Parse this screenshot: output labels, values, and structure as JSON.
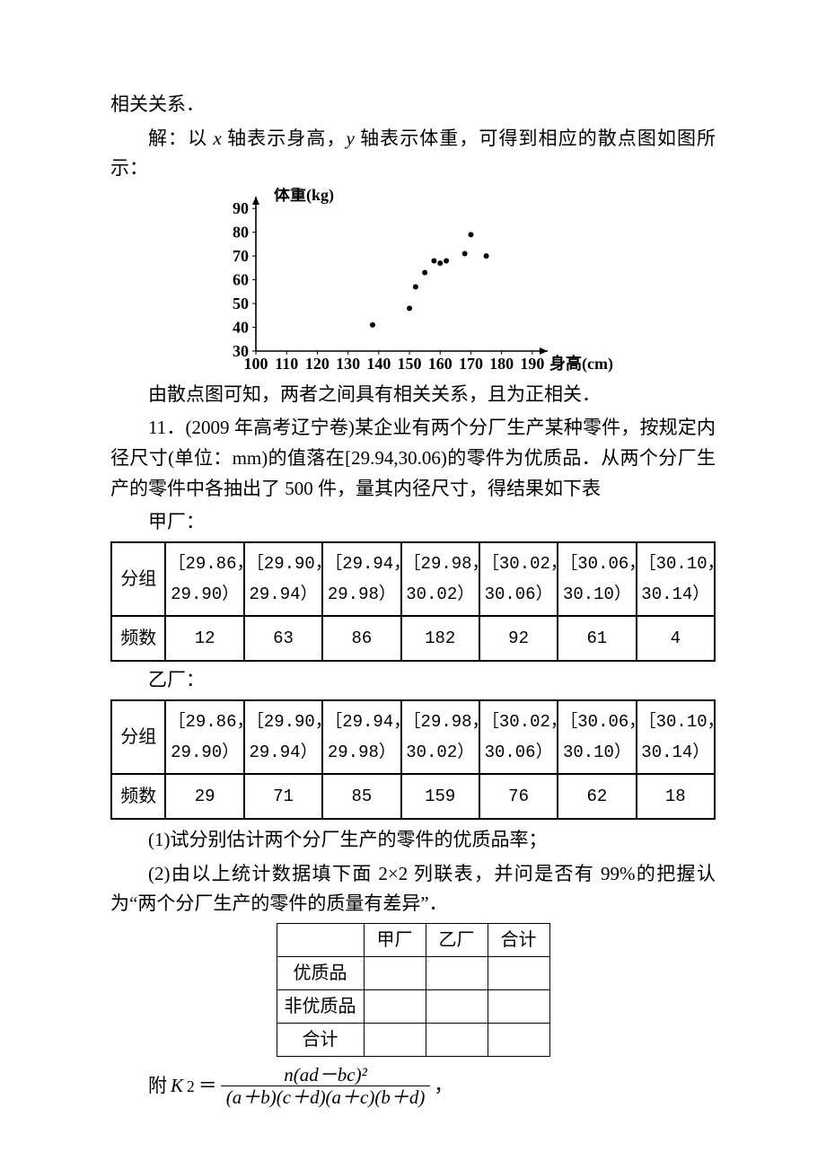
{
  "intro": {
    "line1": "相关关系．",
    "line2_pre": "解：以 ",
    "line2_x": "x",
    "line2_mid": " 轴表示身高，",
    "line2_y": "y",
    "line2_post": " 轴表示体重，可得到相应的散点图如图所示：",
    "post": "由散点图可知，两者之间具有相关关系，且为正相关．"
  },
  "scatter": {
    "type": "scatter",
    "xlabel": "身高(cm)",
    "ylabel": "体重(kg)",
    "x_ticks": [
      100,
      110,
      120,
      130,
      140,
      150,
      160,
      170,
      180,
      190
    ],
    "y_ticks": [
      30,
      40,
      50,
      60,
      70,
      80,
      90
    ],
    "xlim": [
      100,
      195
    ],
    "ylim": [
      30,
      95
    ],
    "point_radius": 3,
    "point_color": "#000000",
    "axis_color": "#000000",
    "label_fontsize": 18,
    "points": [
      [
        138,
        41
      ],
      [
        150,
        48
      ],
      [
        152,
        57
      ],
      [
        155,
        63
      ],
      [
        158,
        68
      ],
      [
        160,
        67
      ],
      [
        162,
        68
      ],
      [
        168,
        71
      ],
      [
        170,
        79
      ],
      [
        175,
        70
      ]
    ]
  },
  "q11": {
    "no": "11．",
    "src": "(2009 年高考辽宁卷)",
    "body1": "某企业有两个分厂生产某种零件，按规定内径尺寸(单位：mm)的值落在[29.94,30.06)的零件为优质品．从两个分厂生产的零件中各抽出了 500 件，量其内径尺寸，得结果如下表",
    "lblA": "甲厂：",
    "lblB": "乙厂：",
    "row_group": "分组",
    "row_freq": "频数",
    "q1": "(1)试分别估计两个分厂生产的零件的优质品率；",
    "q2": "(2)由以上统计数据填下面 2×2 列联表，并问是否有 99%的把握认为“两个分厂生产的零件的质量有差异”．",
    "groups": [
      "［29.86，29.90）",
      "［29.90，29.94）",
      "［29.94，29.98）",
      "［29.98，30.02）",
      "［30.02，30.06）",
      "［30.06，30.10）",
      "［30.10，30.14）"
    ],
    "freqA": [
      12,
      63,
      86,
      182,
      92,
      61,
      4
    ],
    "freqB": [
      29,
      71,
      85,
      159,
      76,
      62,
      18
    ]
  },
  "small": {
    "h_blank": "",
    "h1": "甲厂",
    "h2": "乙厂",
    "h3": "合计",
    "r1": "优质品",
    "r2": "非优质品",
    "r3": "合计"
  },
  "formula": {
    "pre": "附 ",
    "lhs": "K",
    "sup": "2",
    "eq": "＝",
    "num": "n(ad－bc)²",
    "den": "(a＋b)(c＋d)(a＋c)(b＋d)",
    "post": "，"
  }
}
